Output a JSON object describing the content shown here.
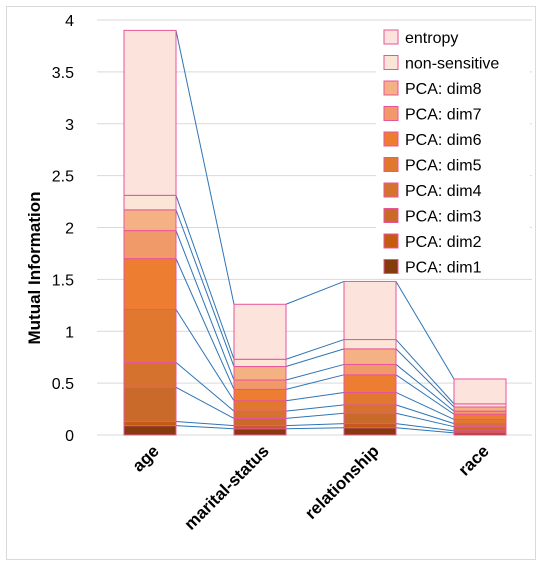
{
  "chart_data": {
    "type": "bar",
    "stacked": true,
    "ylabel": "Mutual Information",
    "xlabel": "",
    "ylim": [
      0,
      4
    ],
    "yticks": [
      "0",
      "0.5",
      "1",
      "1.5",
      "2",
      "2.5",
      "3",
      "3.5",
      "4"
    ],
    "grid": true,
    "legend_position": "top-right",
    "categories": [
      "age",
      "marital-status",
      "relationship",
      "race"
    ],
    "series": [
      {
        "name": "PCA: dim1",
        "color": "#843C0C",
        "values": [
          0.09,
          0.06,
          0.07,
          0.02
        ]
      },
      {
        "name": "PCA: dim2",
        "color": "#C55A11",
        "values": [
          0.04,
          0.03,
          0.04,
          0.02
        ]
      },
      {
        "name": "PCA: dim3",
        "color": "#C96A2A",
        "values": [
          0.33,
          0.07,
          0.1,
          0.04
        ]
      },
      {
        "name": "PCA: dim4",
        "color": "#D5732E",
        "values": [
          0.24,
          0.07,
          0.08,
          0.03
        ]
      },
      {
        "name": "PCA: dim5",
        "color": "#E0782F",
        "values": [
          0.51,
          0.1,
          0.12,
          0.04
        ]
      },
      {
        "name": "PCA: dim6",
        "color": "#ED7D31",
        "values": [
          0.49,
          0.11,
          0.17,
          0.05
        ]
      },
      {
        "name": "PCA: dim7",
        "color": "#F09A6A",
        "values": [
          0.27,
          0.09,
          0.1,
          0.03
        ]
      },
      {
        "name": "PCA: dim8",
        "color": "#F4B183",
        "values": [
          0.2,
          0.13,
          0.15,
          0.04
        ]
      },
      {
        "name": "non-sensitive",
        "color": "#FBE5D6",
        "values": [
          0.14,
          0.07,
          0.09,
          0.03
        ]
      },
      {
        "name": "entropy",
        "color": "#FCE4DC",
        "values": [
          1.59,
          0.53,
          0.56,
          0.24
        ]
      }
    ]
  },
  "colors": {
    "bar_border": "#E8559A",
    "connector_line": "#2E75B6",
    "gridline": "#D9D9D9"
  }
}
